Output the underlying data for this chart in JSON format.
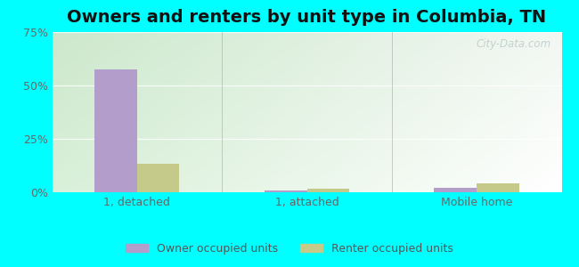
{
  "title": "Owners and renters by unit type in Columbia, TN",
  "categories": [
    "1, detached",
    "1, attached",
    "Mobile home"
  ],
  "owner_values": [
    57.5,
    1.0,
    2.0
  ],
  "renter_values": [
    13.5,
    1.5,
    4.0
  ],
  "owner_color": "#b39dca",
  "renter_color": "#c5c98a",
  "ylim": [
    0,
    75
  ],
  "yticks": [
    0,
    25,
    50,
    75
  ],
  "ytick_labels": [
    "0%",
    "25%",
    "50%",
    "75%"
  ],
  "bar_width": 0.25,
  "outer_bg": "#00ffff",
  "legend_owner": "Owner occupied units",
  "legend_renter": "Renter occupied units",
  "watermark": "City-Data.com",
  "title_fontsize": 14,
  "axis_label_fontsize": 9,
  "legend_fontsize": 9,
  "grid_color": "#ccddcc",
  "bg_color_topleft": "#d8eed8",
  "bg_color_topright": "#e8f4f0",
  "bg_color_bottomleft": "#e0f0e8",
  "bg_color_bottomright": "#f0f8f4"
}
